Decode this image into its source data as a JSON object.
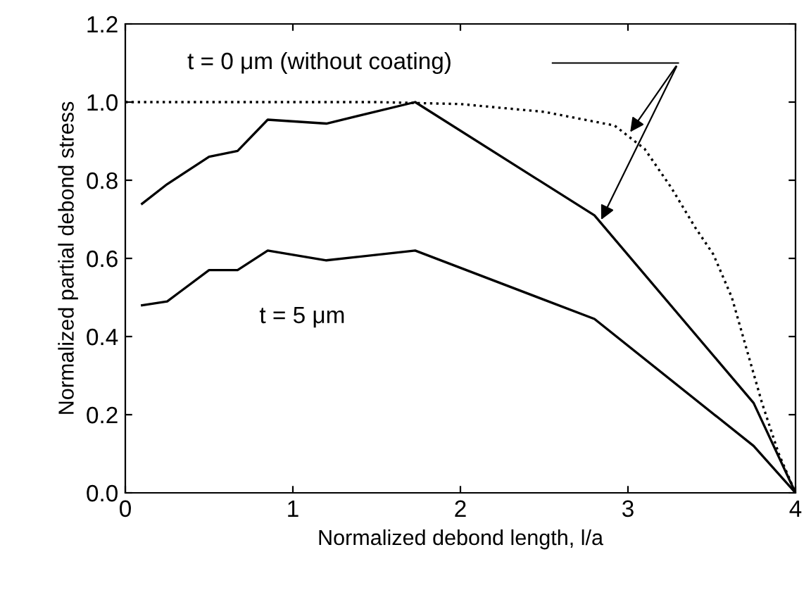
{
  "chart_data": {
    "type": "line",
    "xlabel": "Normalized debond length, l/a",
    "ylabel": "Normalized partial debond stress",
    "xlim": [
      0,
      4
    ],
    "ylim": [
      0,
      1.2
    ],
    "xticks": [
      0,
      1,
      2,
      3,
      4
    ],
    "yticks": [
      {
        "value": 0,
        "label": "0.0"
      },
      0.2,
      0.4,
      0.6,
      0.8,
      {
        "value": 1,
        "label": "1.0"
      },
      1.2
    ],
    "grid": false,
    "legend": false,
    "marker": "none",
    "series": [
      {
        "color": "#000000",
        "line_style": "dotted",
        "x": [
          0,
          0.5,
          1.0,
          1.5,
          2.0,
          2.5,
          2.92,
          3.1,
          3.26,
          3.4,
          3.51,
          3.62,
          3.72,
          3.8,
          3.9,
          4.0
        ],
        "values": [
          1.0,
          1.0,
          1.0,
          1.0,
          0.995,
          0.975,
          0.94,
          0.88,
          0.78,
          0.68,
          0.61,
          0.5,
          0.35,
          0.23,
          0.1,
          0.0
        ]
      },
      {
        "color": "#000000",
        "line_style": "solid",
        "x": [
          0.1,
          0.25,
          0.5,
          0.67,
          0.85,
          1.2,
          1.73,
          2.8,
          3.75,
          4.0
        ],
        "values": [
          0.74,
          0.79,
          0.86,
          0.875,
          0.955,
          0.945,
          1.0,
          0.71,
          0.23,
          0.0
        ]
      },
      {
        "color": "#000000",
        "line_style": "solid",
        "x": [
          0.1,
          0.25,
          0.5,
          0.67,
          0.85,
          1.2,
          1.73,
          2.8,
          3.75,
          4.0
        ],
        "values": [
          0.48,
          0.49,
          0.57,
          0.57,
          0.62,
          0.595,
          0.62,
          0.445,
          0.12,
          0.0
        ]
      }
    ],
    "annotations": [
      "t = 0 μm (without coating)",
      "t = 5 μm"
    ]
  }
}
